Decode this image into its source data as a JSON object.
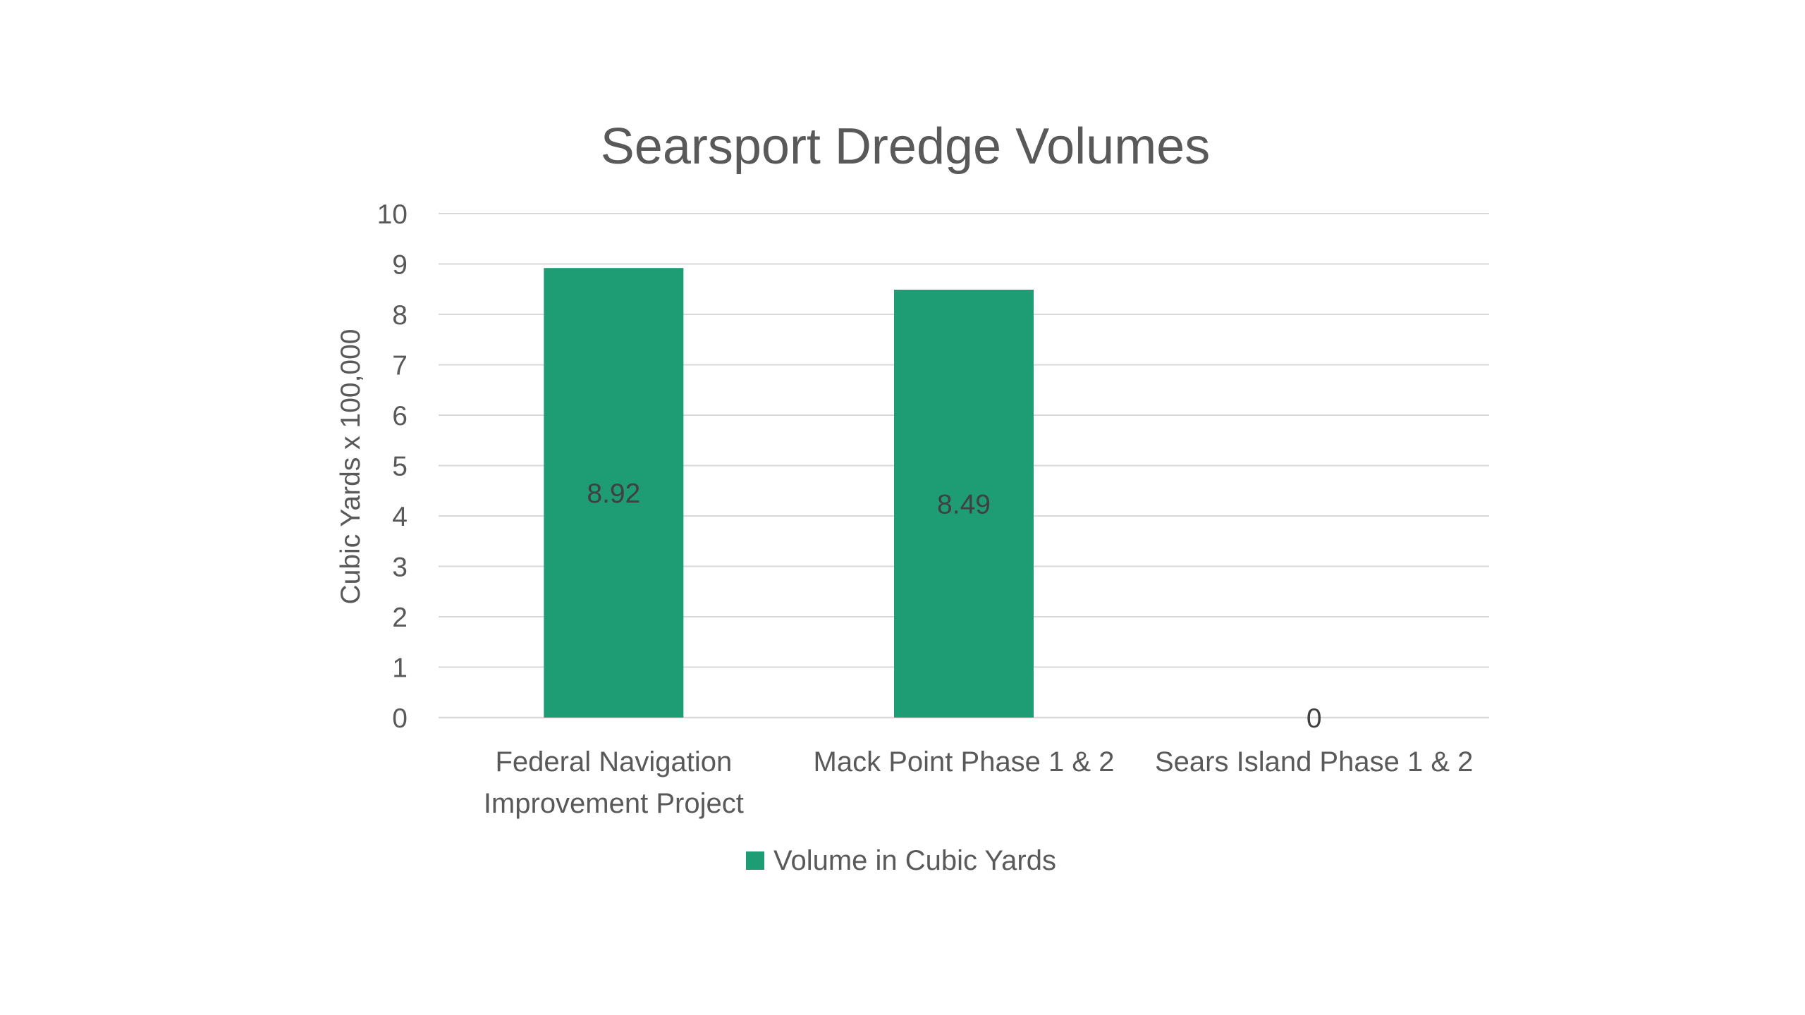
{
  "chart_data": {
    "type": "bar",
    "title": "Searsport Dredge Volumes",
    "xlabel": "",
    "ylabel": "Cubic Yards x 100,000",
    "ylim": [
      0,
      10
    ],
    "yticks": [
      0,
      1,
      2,
      3,
      4,
      5,
      6,
      7,
      8,
      9,
      10
    ],
    "grid": true,
    "legend_position": "bottom",
    "categories": [
      [
        "Federal Navigation",
        "Improvement Project"
      ],
      [
        "Mack Point Phase 1 & 2"
      ],
      [
        "Sears Island Phase 1 & 2"
      ]
    ],
    "series": [
      {
        "name": "Volume in Cubic Yards",
        "color": "#1e9c74",
        "values": [
          8.92,
          8.49,
          0
        ],
        "data_labels": [
          "8.92",
          "8.49",
          "0"
        ]
      }
    ]
  }
}
